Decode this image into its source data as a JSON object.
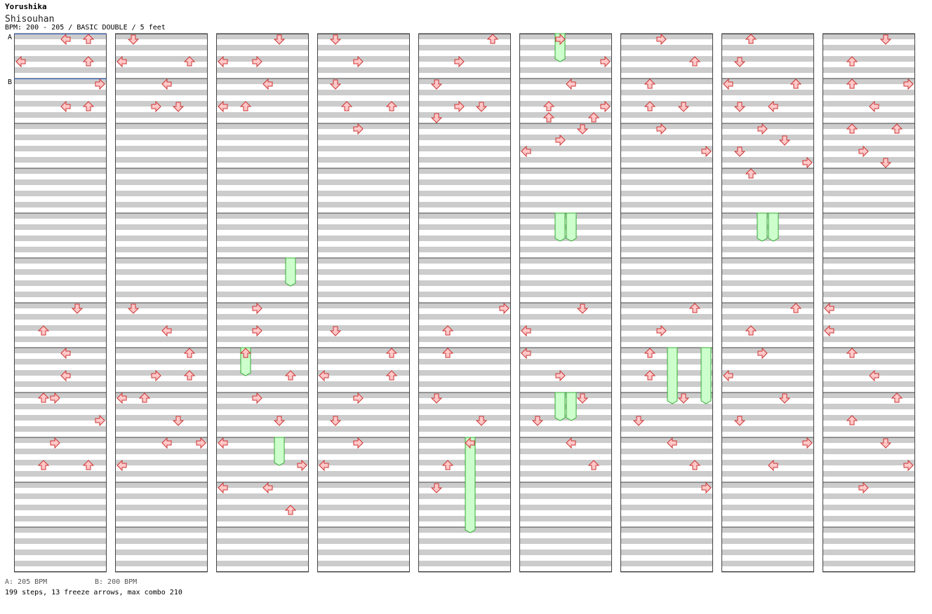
{
  "header": {
    "artist": "Yorushika",
    "title": "Shisouhan",
    "info": "BPM: 200 - 205 / BASIC DOUBLE / 5 feet"
  },
  "bpm_markers": [
    {
      "label": "A",
      "measure": 0
    },
    {
      "label": "B",
      "measure": 1
    }
  ],
  "footer": {
    "bpm_a": "A: 205 BPM",
    "bpm_b": "B: 200 BPM",
    "stats": "199 steps, 13 freeze arrows, max combo 210"
  },
  "colors": {
    "stripe": "#cccccc",
    "arrow_fill": "#ffc8c8",
    "arrow_stroke": "#cc3333",
    "freeze_fill": "#ccffcc",
    "freeze_stroke": "#33aa33",
    "bpm_line": "#3366cc",
    "frame": "#444444"
  },
  "chart_data": {
    "type": "step-chart",
    "columns": 9,
    "measures_per_column": 12,
    "lanes": 8,
    "lane_directions": [
      "left",
      "down",
      "up",
      "right",
      "left",
      "down",
      "up",
      "right"
    ],
    "subdivisions_per_measure": 8,
    "notes": [
      [
        [
          4,
          0
        ],
        [
          6,
          0
        ],
        [
          6,
          4
        ],
        [
          0,
          4
        ],
        [
          7,
          8
        ],
        [
          4,
          12
        ],
        [
          6,
          12
        ]
      ],
      [
        [
          1,
          0
        ],
        [
          6,
          4
        ],
        [
          0,
          4
        ],
        [
          4,
          8
        ],
        [
          5,
          12
        ],
        [
          3,
          12
        ]
      ],
      [
        [
          5,
          0
        ],
        [
          3,
          4
        ],
        [
          0,
          4
        ],
        [
          4,
          8
        ],
        [
          2,
          12
        ],
        [
          0,
          12
        ]
      ],
      [
        [
          1,
          0
        ],
        [
          3,
          4
        ],
        [
          1,
          8
        ],
        [
          2,
          12
        ],
        [
          6,
          12
        ],
        [
          3,
          16
        ]
      ],
      [
        [
          6,
          0
        ],
        [
          3,
          4
        ],
        [
          1,
          8
        ],
        [
          3,
          12
        ],
        [
          5,
          12
        ],
        [
          1,
          14
        ]
      ],
      [
        [
          3,
          0
        ],
        [
          7,
          4
        ],
        [
          4,
          8
        ],
        [
          2,
          12
        ],
        [
          7,
          12
        ],
        [
          6,
          14
        ],
        [
          2,
          14
        ],
        [
          5,
          16
        ],
        [
          3,
          18
        ],
        [
          0,
          20
        ]
      ],
      [
        [
          3,
          0
        ],
        [
          6,
          4
        ],
        [
          2,
          8
        ],
        [
          2,
          12
        ],
        [
          5,
          12
        ],
        [
          3,
          16
        ],
        [
          7,
          20
        ]
      ],
      [
        [
          2,
          0
        ],
        [
          1,
          4
        ],
        [
          6,
          8
        ],
        [
          0,
          8
        ],
        [
          1,
          12
        ],
        [
          4,
          12
        ],
        [
          3,
          16
        ],
        [
          5,
          18
        ],
        [
          1,
          20
        ],
        [
          7,
          22
        ],
        [
          2,
          24
        ]
      ],
      [
        [
          5,
          0
        ],
        [
          2,
          4
        ],
        [
          2,
          8
        ],
        [
          7,
          8
        ],
        [
          4,
          12
        ],
        [
          2,
          16
        ],
        [
          6,
          16
        ],
        [
          3,
          20
        ],
        [
          5,
          22
        ]
      ],
      [
        [
          5,
          0
        ],
        [
          2,
          4
        ],
        [
          4,
          8
        ],
        [
          4,
          12
        ],
        [
          2,
          16
        ],
        [
          3,
          16
        ],
        [
          7,
          20
        ],
        [
          3,
          24
        ],
        [
          6,
          28
        ],
        [
          2,
          28
        ]
      ],
      [
        [
          1,
          0
        ],
        [
          4,
          4
        ],
        [
          6,
          8
        ],
        [
          6,
          12
        ],
        [
          3,
          12
        ],
        [
          2,
          16
        ],
        [
          0,
          16
        ],
        [
          5,
          20
        ],
        [
          7,
          24
        ],
        [
          4,
          24
        ],
        [
          0,
          28
        ]
      ],
      [
        [
          3,
          0
        ],
        [
          3,
          4
        ],
        [
          2,
          8
        ],
        [
          6,
          12
        ],
        [
          3,
          16
        ],
        [
          5,
          20
        ],
        [
          0,
          24
        ],
        [
          7,
          28
        ],
        [
          0,
          32
        ],
        [
          4,
          32
        ],
        [
          6,
          36
        ]
      ],
      [
        [
          1,
          4
        ],
        [
          6,
          8
        ],
        [
          6,
          12
        ],
        [
          0,
          12
        ],
        [
          3,
          16
        ],
        [
          1,
          20
        ],
        [
          3,
          24
        ],
        [
          0,
          28
        ]
      ],
      [
        [
          7,
          0
        ],
        [
          2,
          4
        ],
        [
          2,
          8
        ],
        [
          1,
          16
        ],
        [
          5,
          20
        ],
        [
          4,
          24
        ],
        [
          2,
          28
        ],
        [
          1,
          32
        ]
      ],
      [
        [
          5,
          0
        ],
        [
          0,
          4
        ],
        [
          0,
          8
        ],
        [
          3,
          12
        ],
        [
          5,
          16
        ],
        [
          1,
          20
        ],
        [
          4,
          24
        ],
        [
          6,
          28
        ]
      ],
      [
        [
          6,
          0
        ],
        [
          3,
          4
        ],
        [
          2,
          8
        ],
        [
          2,
          12
        ],
        [
          5,
          16
        ],
        [
          1,
          20
        ],
        [
          4,
          24
        ],
        [
          6,
          28
        ],
        [
          7,
          32
        ]
      ],
      [
        [
          6,
          0
        ],
        [
          2,
          4
        ],
        [
          3,
          8
        ],
        [
          0,
          12
        ],
        [
          5,
          16
        ],
        [
          1,
          20
        ],
        [
          7,
          24
        ],
        [
          4,
          28
        ]
      ],
      [
        [
          0,
          0
        ],
        [
          0,
          4
        ],
        [
          2,
          8
        ],
        [
          4,
          12
        ],
        [
          6,
          16
        ],
        [
          2,
          20
        ],
        [
          5,
          24
        ],
        [
          7,
          28
        ],
        [
          3,
          32
        ]
      ]
    ],
    "freezes": [
      {
        "column": 5,
        "lane": 3,
        "start_measure": 0,
        "start_sub": 0,
        "end_measure": 0,
        "end_sub": 3
      },
      {
        "column": 5,
        "lane": 3,
        "start_measure": 4,
        "start_sub": 0,
        "end_measure": 4,
        "end_sub": 3
      },
      {
        "column": 5,
        "lane": 4,
        "start_measure": 4,
        "start_sub": 0,
        "end_measure": 4,
        "end_sub": 3
      },
      {
        "column": 7,
        "lane": 3,
        "start_measure": 4,
        "start_sub": 0,
        "end_measure": 4,
        "end_sub": 3
      },
      {
        "column": 7,
        "lane": 4,
        "start_measure": 4,
        "start_sub": 0,
        "end_measure": 4,
        "end_sub": 3
      },
      {
        "column": 2,
        "lane": 6,
        "start_measure": 5,
        "start_sub": 0,
        "end_measure": 5,
        "end_sub": 3
      },
      {
        "column": 2,
        "lane": 2,
        "start_measure": 7,
        "start_sub": 0,
        "end_measure": 7,
        "end_sub": 3
      },
      {
        "column": 6,
        "lane": 4,
        "start_measure": 7,
        "start_sub": 0,
        "end_measure": 8,
        "end_sub": 0
      },
      {
        "column": 6,
        "lane": 7,
        "start_measure": 7,
        "start_sub": 0,
        "end_measure": 8,
        "end_sub": 0
      },
      {
        "column": 5,
        "lane": 3,
        "start_measure": 8,
        "start_sub": 0,
        "end_measure": 8,
        "end_sub": 3
      },
      {
        "column": 5,
        "lane": 4,
        "start_measure": 8,
        "start_sub": 0,
        "end_measure": 8,
        "end_sub": 3
      },
      {
        "column": 2,
        "lane": 5,
        "start_measure": 9,
        "start_sub": 0,
        "end_measure": 9,
        "end_sub": 3
      },
      {
        "column": 4,
        "lane": 4,
        "start_measure": 9,
        "start_sub": 0,
        "end_measure": 10,
        "end_sub": 7
      }
    ]
  }
}
